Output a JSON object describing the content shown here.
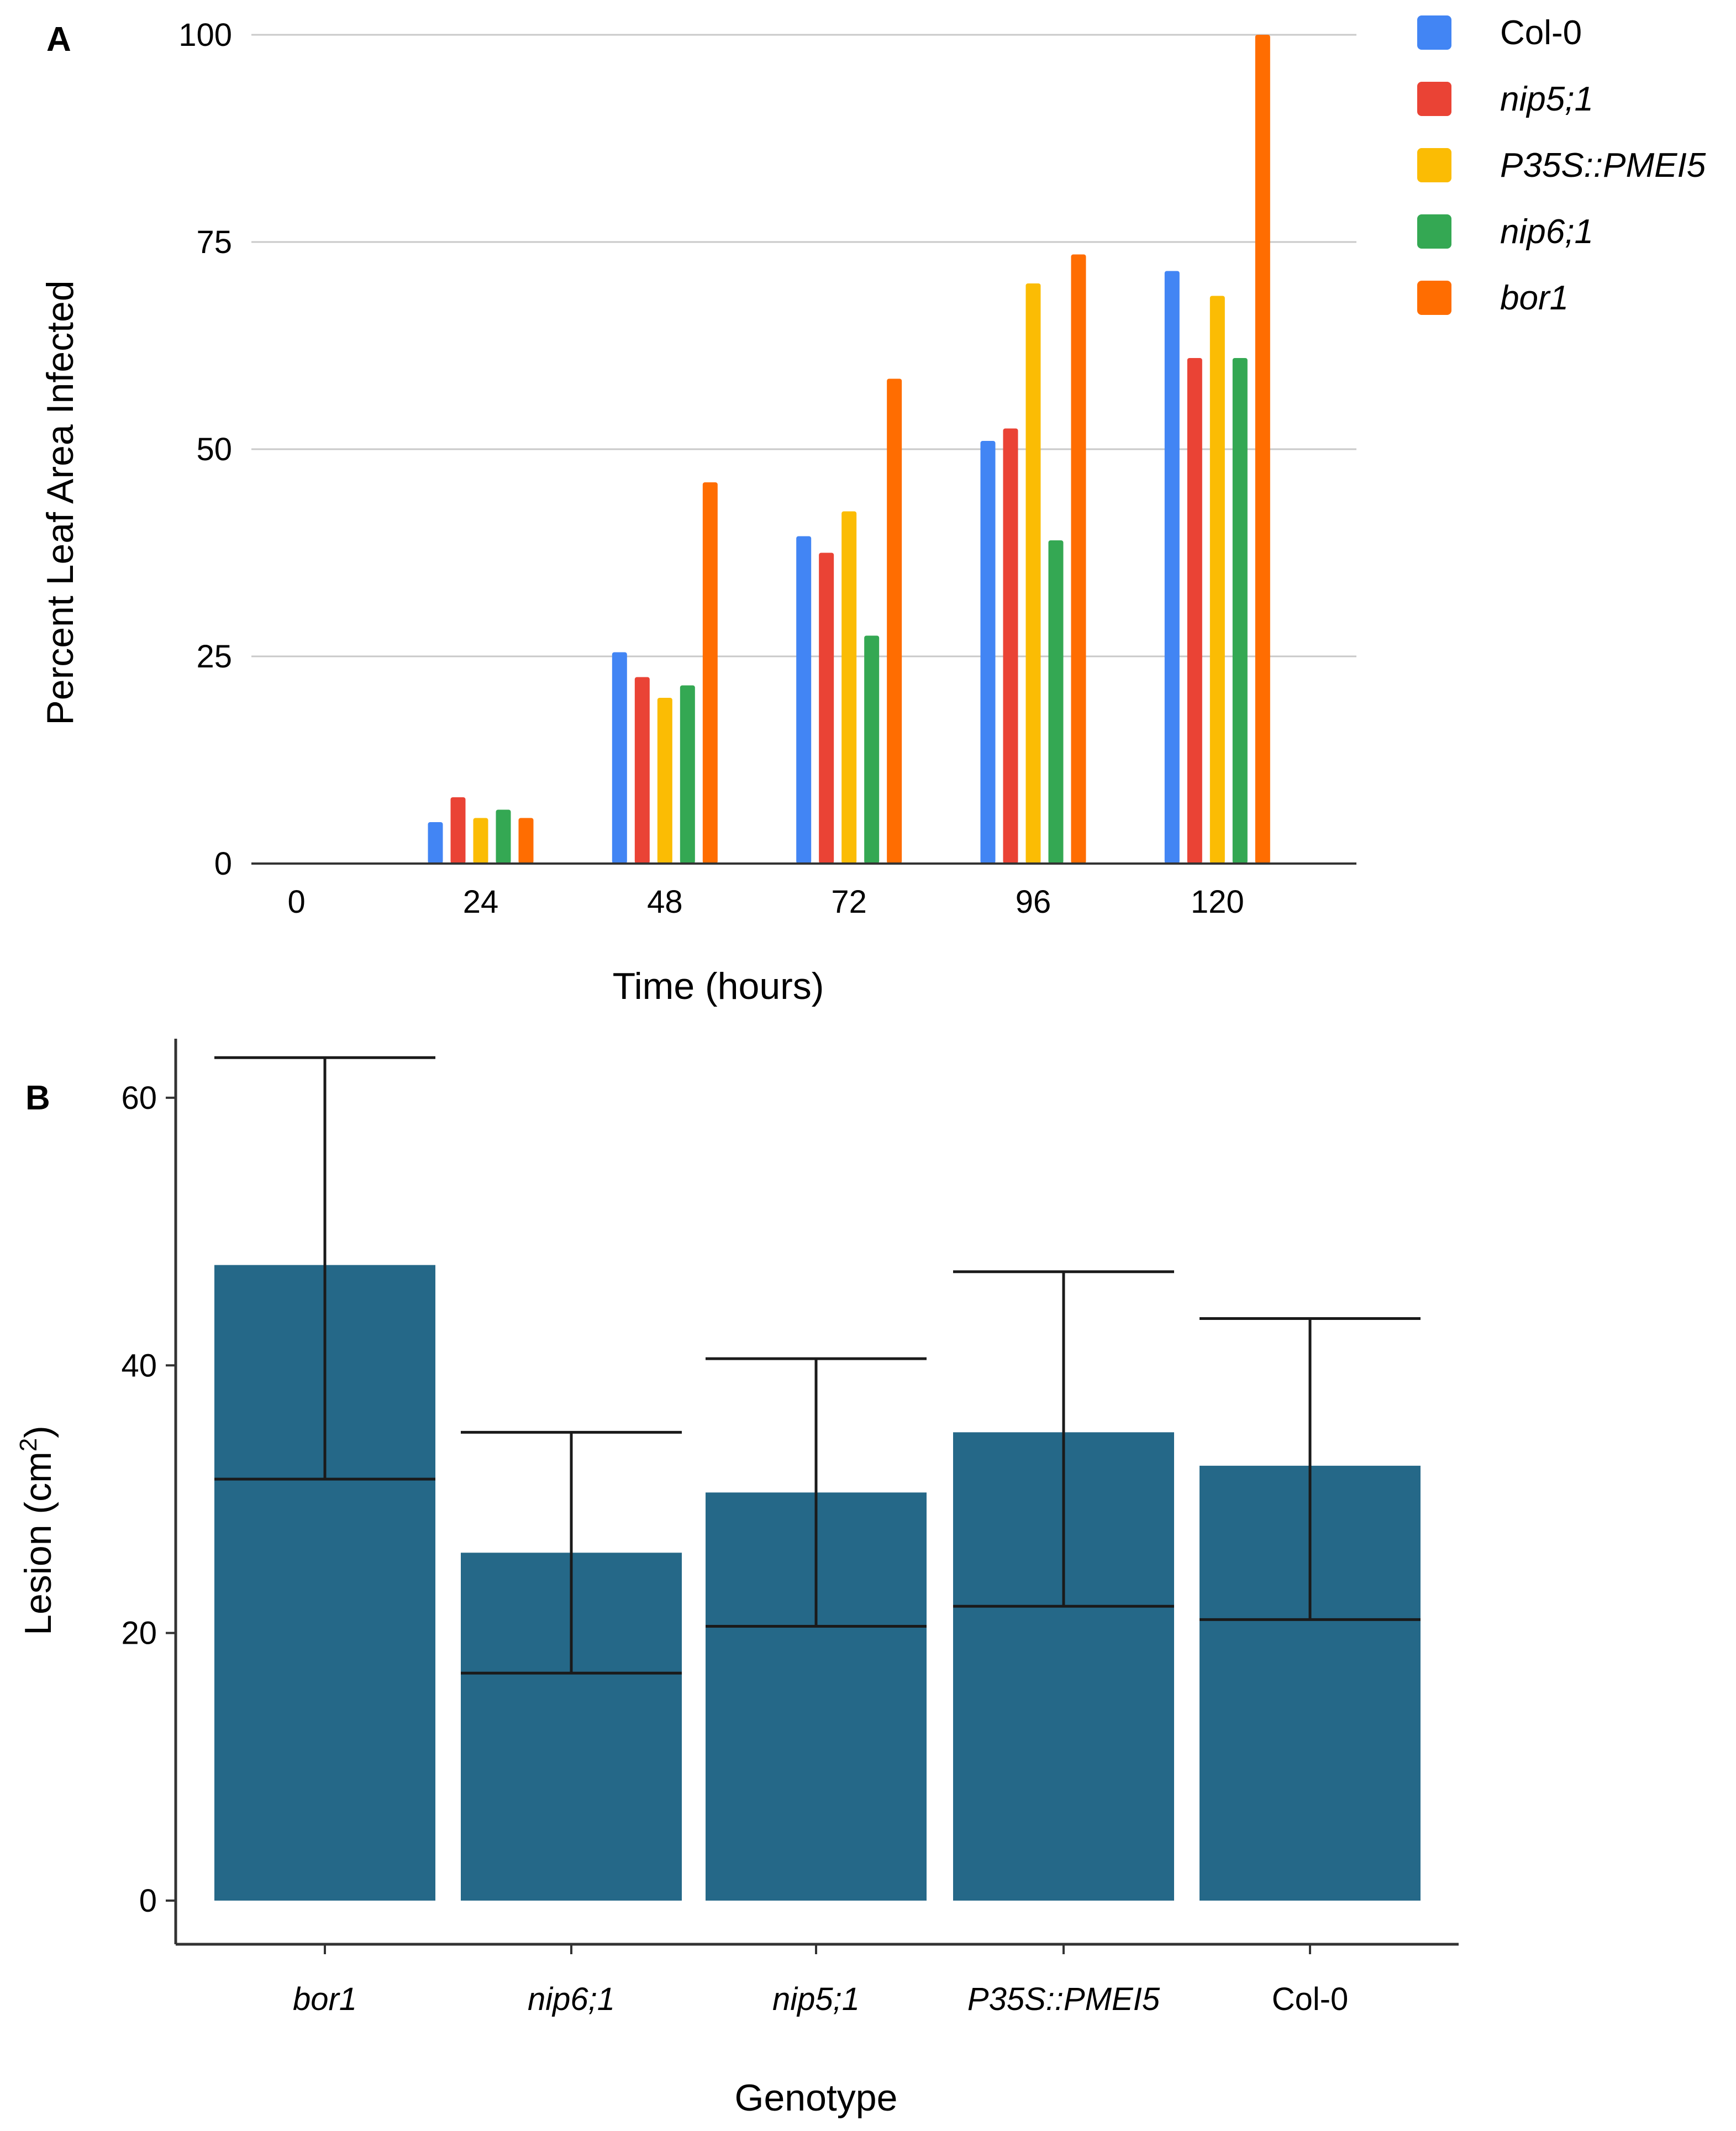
{
  "chart_data": [
    {
      "panel": "A",
      "type": "bar",
      "title": "",
      "xlabel": "Time (hours)",
      "ylabel": "Percent Leaf Area Infected",
      "categories": [
        "0",
        "24",
        "48",
        "72",
        "96",
        "120"
      ],
      "yticks": [
        "0",
        "25",
        "50",
        "75",
        "100"
      ],
      "ylim": [
        0,
        100
      ],
      "grid": true,
      "legend": "right",
      "series": [
        {
          "name": "Col-0",
          "italic": false,
          "color": "#4285f4",
          "values": [
            0,
            5,
            25.5,
            39.5,
            51,
            71.5
          ]
        },
        {
          "name": "nip5;1",
          "italic": true,
          "color": "#ea4335",
          "values": [
            0,
            8,
            22.5,
            37.5,
            52.5,
            61
          ]
        },
        {
          "name": "P35S::PMEI5",
          "italic": true,
          "color": "#fbbc04",
          "values": [
            0,
            5.5,
            20,
            42.5,
            70,
            68.5
          ]
        },
        {
          "name": "nip6;1",
          "italic": true,
          "color": "#34a853",
          "values": [
            0,
            6.5,
            21.5,
            27.5,
            39,
            61
          ]
        },
        {
          "name": "bor1",
          "italic": true,
          "color": "#ff6d01",
          "values": [
            0,
            5.5,
            46,
            58.5,
            73.5,
            100
          ]
        }
      ]
    },
    {
      "panel": "B",
      "type": "bar",
      "title": "",
      "xlabel": "Genotype",
      "ylabel": "Lesion (cm",
      "ylabel_sup": "2",
      "ylabel_close": ")",
      "color": "#256888",
      "categories": [
        "bor1",
        "nip6;1",
        "nip5;1",
        "P35S::PMEI5",
        "Col-0"
      ],
      "italic": [
        true,
        true,
        true,
        true,
        false
      ],
      "values": [
        47.5,
        26,
        30.5,
        35,
        32.5
      ],
      "error_low": [
        31.5,
        17,
        20.5,
        22,
        21
      ],
      "error_high": [
        63,
        35,
        40.5,
        47,
        43.5
      ],
      "yticks": [
        "0",
        "20",
        "40",
        "60"
      ],
      "ylim": [
        0,
        64
      ],
      "grid": false
    }
  ]
}
